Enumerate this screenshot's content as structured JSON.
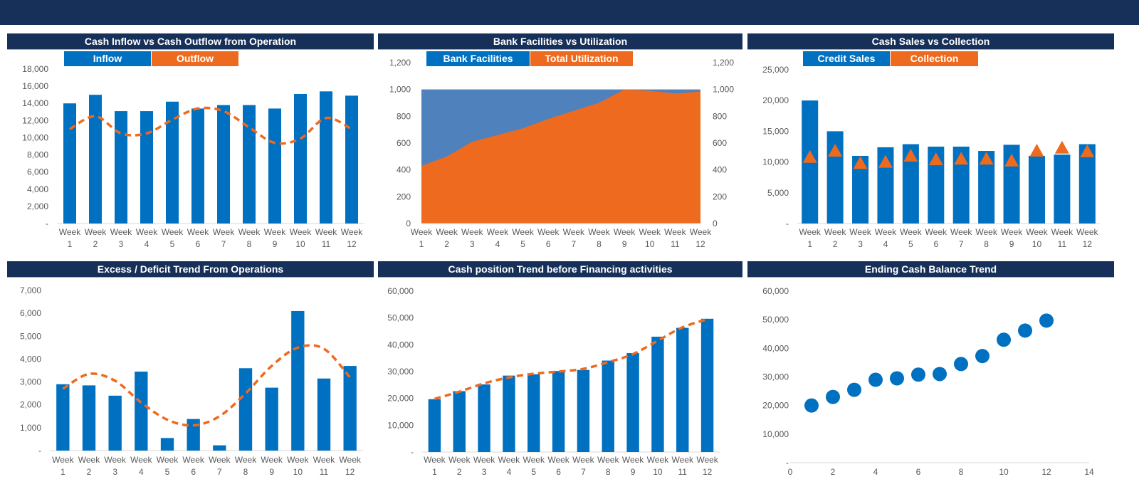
{
  "colors": {
    "banner": "#17305a",
    "primary": "#0070c0",
    "accent": "#ee6a1f",
    "facility_area": "#4f81bd"
  },
  "charts": [
    {
      "title": "Cash Inflow vs Cash Outflow from Operation",
      "legend": [
        "Inflow",
        "Outflow"
      ]
    },
    {
      "title": "Bank Facilities vs Utilization",
      "legend": [
        "Bank Facilities",
        "Total Utilization"
      ]
    },
    {
      "title": "Cash Sales vs Collection",
      "legend": [
        "Credit Sales",
        "Collection"
      ]
    },
    {
      "title": "Excess / Deficit Trend From Operations",
      "legend": []
    },
    {
      "title": "Cash position Trend before Financing activities",
      "legend": []
    },
    {
      "title": "Ending Cash Balance Trend",
      "legend": []
    }
  ],
  "chart_data": [
    {
      "type": "bar+line",
      "title": "Cash Inflow vs Cash Outflow from Operation",
      "categories": [
        "Week 1",
        "Week 2",
        "Week 3",
        "Week 4",
        "Week 5",
        "Week 6",
        "Week 7",
        "Week 8",
        "Week 9",
        "Week 10",
        "Week 11",
        "Week 12"
      ],
      "series": [
        {
          "name": "Inflow",
          "type": "bar",
          "values": [
            14000,
            15000,
            13100,
            13100,
            14200,
            13400,
            13800,
            13800,
            13400,
            15100,
            15400,
            14900
          ]
        },
        {
          "name": "Outflow",
          "type": "smooth-dashed-line",
          "values": [
            11000,
            12500,
            10500,
            10500,
            12100,
            13400,
            13100,
            11200,
            9400,
            9900,
            12300,
            11000
          ]
        }
      ],
      "ylim": [
        0,
        18000
      ],
      "ystep": 2000,
      "zero_label": "-",
      "legend": "top"
    },
    {
      "type": "area",
      "title": "Bank Facilities vs Utilization",
      "categories": [
        "Week 1",
        "Week 2",
        "Week 3",
        "Week 4",
        "Week 5",
        "Week 6",
        "Week 7",
        "Week 8",
        "Week 9",
        "Week 10",
        "Week 11",
        "Week 12"
      ],
      "series": [
        {
          "name": "Bank Facilities",
          "values": [
            1000,
            1000,
            1000,
            1000,
            1000,
            1000,
            1000,
            1000,
            1000,
            1000,
            1000,
            1000
          ]
        },
        {
          "name": "Total Utilization",
          "values": [
            430,
            500,
            610,
            660,
            710,
            780,
            840,
            900,
            1000,
            990,
            970,
            985
          ]
        }
      ],
      "ylim": [
        0,
        1200
      ],
      "ystep": 200,
      "secondary_axis": true,
      "legend": "top"
    },
    {
      "type": "bar+marker",
      "title": "Cash Sales vs Collection",
      "categories": [
        "Week 1",
        "Week 2",
        "Week 3",
        "Week 4",
        "Week 5",
        "Week 6",
        "Week 7",
        "Week 8",
        "Week 9",
        "Week 10",
        "Week 11",
        "Week 12"
      ],
      "series": [
        {
          "name": "Credit Sales",
          "type": "bar",
          "values": [
            20000,
            15000,
            11000,
            12400,
            12900,
            12500,
            12500,
            11800,
            12800,
            11000,
            11200,
            12900
          ]
        },
        {
          "name": "Collection",
          "type": "triangle-marker",
          "values": [
            10800,
            11800,
            9800,
            10000,
            11000,
            10400,
            10500,
            10500,
            10200,
            11800,
            12300,
            11700
          ]
        }
      ],
      "ylim": [
        0,
        25000
      ],
      "ystep": 5000,
      "zero_label": "-",
      "legend": "top"
    },
    {
      "type": "bar+trendline",
      "title": "Excess / Deficit Trend From Operations",
      "categories": [
        "Week 1",
        "Week 2",
        "Week 3",
        "Week 4",
        "Week 5",
        "Week 6",
        "Week 7",
        "Week 8",
        "Week 9",
        "Week 10",
        "Week 11",
        "Week 12"
      ],
      "series": [
        {
          "type": "bar",
          "values": [
            2900,
            2850,
            2400,
            3450,
            550,
            1380,
            230,
            3600,
            2750,
            6100,
            3150,
            3700
          ]
        },
        {
          "type": "trendline",
          "values": [
            2700,
            3350,
            3050,
            2100,
            1350,
            1100,
            1500,
            2500,
            3700,
            4500,
            4450,
            3200
          ]
        }
      ],
      "ylim": [
        0,
        7000
      ],
      "ystep": 1000,
      "zero_label": "-"
    },
    {
      "type": "bar+trendline",
      "title": "Cash position Trend before Financing activities",
      "categories": [
        "Week 1",
        "Week 2",
        "Week 3",
        "Week 4",
        "Week 5",
        "Week 6",
        "Week 7",
        "Week 8",
        "Week 9",
        "Week 10",
        "Week 11",
        "Week 12"
      ],
      "series": [
        {
          "type": "bar",
          "values": [
            19700,
            22700,
            25200,
            28500,
            29000,
            30200,
            30600,
            34100,
            36900,
            43000,
            46300,
            49700
          ]
        },
        {
          "type": "trendline",
          "values": [
            19800,
            22500,
            25600,
            27800,
            29200,
            30000,
            31000,
            33500,
            36500,
            41500,
            46500,
            49500
          ]
        }
      ],
      "ylim": [
        0,
        60000
      ],
      "ystep": 10000,
      "zero_label": "-"
    },
    {
      "type": "scatter",
      "title": "Ending Cash Balance Trend",
      "x": [
        1,
        2,
        3,
        4,
        5,
        6,
        7,
        8,
        9,
        10,
        11,
        12
      ],
      "y": [
        20000,
        23000,
        25500,
        29000,
        29500,
        30800,
        31000,
        34500,
        37300,
        43000,
        46200,
        49700
      ],
      "xlim": [
        0,
        14
      ],
      "xstep": 2,
      "ylim": [
        0,
        60000
      ],
      "ystep": 10000,
      "zero_label": "-"
    }
  ]
}
